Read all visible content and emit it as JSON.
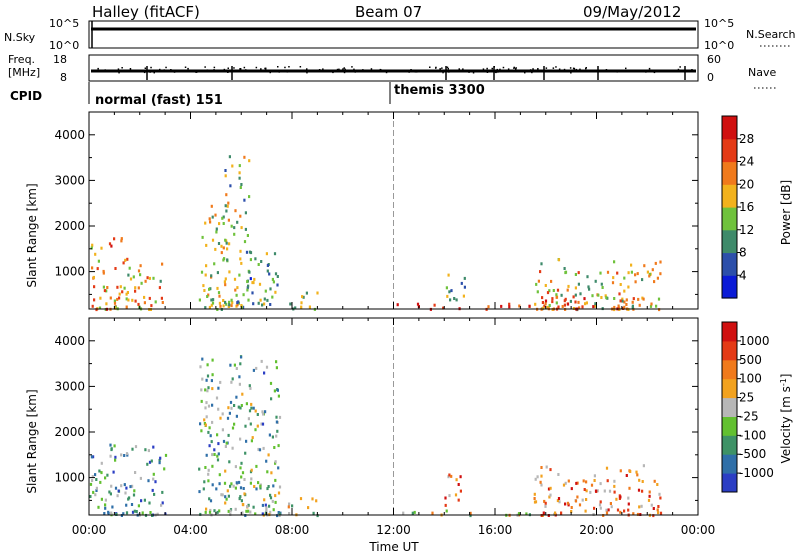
{
  "header": {
    "station": "Halley (fitACF)",
    "beam": "Beam 07",
    "date": "09/May/2012"
  },
  "status_panels": {
    "nsky_label": "N.Sky",
    "nsky_ticks": [
      "10^5",
      "10^0"
    ],
    "nsearch_label": "N.Search",
    "nsearch_ticks": [
      "10^5",
      "10^0"
    ],
    "freq_label": "Freq.",
    "freq_unit": "[MHz]",
    "freq_ticks": [
      "18",
      "8"
    ],
    "nave_label": "Nave",
    "nave_ticks": [
      "60",
      "0"
    ],
    "cpid_label": "CPID",
    "cpid_modes": [
      {
        "name": "normal (fast) 151",
        "start_hour": 0
      },
      {
        "name": "themis 3300",
        "start_hour": 12
      }
    ]
  },
  "chart_data": [
    {
      "type": "heatmap",
      "quantity": "Power",
      "colorbar_label": "Power [dB]",
      "colorbar_ticks": [
        "4",
        "8",
        "12",
        "16",
        "20",
        "24",
        "28"
      ],
      "colorbar_range": [
        0,
        32
      ],
      "colors": [
        "#0b1bd6",
        "#2c4faa",
        "#3e8a6a",
        "#6fc23c",
        "#f2b21d",
        "#f07a1c",
        "#e43a16",
        "#d01010"
      ],
      "ylabel": "Slant Range [km]",
      "yticks": [
        "1000",
        "2000",
        "3000",
        "4000"
      ],
      "ylim": [
        180,
        4500
      ],
      "xlim": [
        0,
        24
      ],
      "xlabel": "",
      "scatter_regions": [
        {
          "t0": 0.0,
          "t1": 1.5,
          "r0": 200,
          "r1": 1800,
          "level": 0.65
        },
        {
          "t0": 1.5,
          "t1": 3.0,
          "r0": 200,
          "r1": 1200,
          "level": 0.6
        },
        {
          "t0": 4.3,
          "t1": 5.3,
          "r0": 200,
          "r1": 2500,
          "level": 0.5
        },
        {
          "t0": 5.3,
          "t1": 6.3,
          "r0": 250,
          "r1": 3700,
          "level": 0.45
        },
        {
          "t0": 6.3,
          "t1": 7.5,
          "r0": 300,
          "r1": 1600,
          "level": 0.35
        },
        {
          "t0": 7.8,
          "t1": 9.0,
          "r0": 200,
          "r1": 600,
          "level": 0.4
        },
        {
          "t0": 14.0,
          "t1": 14.8,
          "r0": 400,
          "r1": 1100,
          "level": 0.3
        },
        {
          "t0": 17.5,
          "t1": 22.5,
          "r0": 200,
          "r1": 1300,
          "level": 0.55
        },
        {
          "t0": 17.8,
          "t1": 21.5,
          "r0": 200,
          "r1": 500,
          "level": 0.85
        },
        {
          "t0": 12.0,
          "t1": 17.5,
          "r0": 200,
          "r1": 320,
          "level": 0.9
        }
      ]
    },
    {
      "type": "heatmap",
      "quantity": "Velocity",
      "colorbar_label": "Velocity [m s^-1]",
      "colorbar_ticks": [
        "1000",
        "500",
        "100",
        "25",
        "-25",
        "-100",
        "-500",
        "-1000"
      ],
      "colorbar_range": [
        -1000,
        1000
      ],
      "colors": [
        "#2b3ec4",
        "#2f6fa8",
        "#3e9266",
        "#62c030",
        "#b7b7b7",
        "#f2a21f",
        "#f07a1c",
        "#e43a16",
        "#d01010"
      ],
      "ylabel": "Slant Range [km]",
      "yticks": [
        "1000",
        "2000",
        "3000",
        "4000"
      ],
      "ylim": [
        180,
        4500
      ],
      "xlim": [
        0,
        24
      ],
      "xlabel": "Time UT",
      "xticks": [
        "00:00",
        "04:00",
        "08:00",
        "12:00",
        "16:00",
        "20:00",
        "00:00"
      ],
      "scatter_regions": [
        {
          "t0": 0.0,
          "t1": 3.0,
          "r0": 200,
          "r1": 1800,
          "level": 0.3
        },
        {
          "t0": 4.3,
          "t1": 7.5,
          "r0": 200,
          "r1": 3700,
          "level": 0.35
        },
        {
          "t0": 7.8,
          "t1": 9.0,
          "r0": 200,
          "r1": 600,
          "level": 0.45
        },
        {
          "t0": 14.0,
          "t1": 14.8,
          "r0": 400,
          "r1": 1100,
          "level": 0.7
        },
        {
          "t0": 17.5,
          "t1": 22.5,
          "r0": 200,
          "r1": 1300,
          "level": 0.7
        },
        {
          "t0": 12.0,
          "t1": 17.5,
          "r0": 200,
          "r1": 320,
          "level": 0.5
        }
      ]
    }
  ]
}
